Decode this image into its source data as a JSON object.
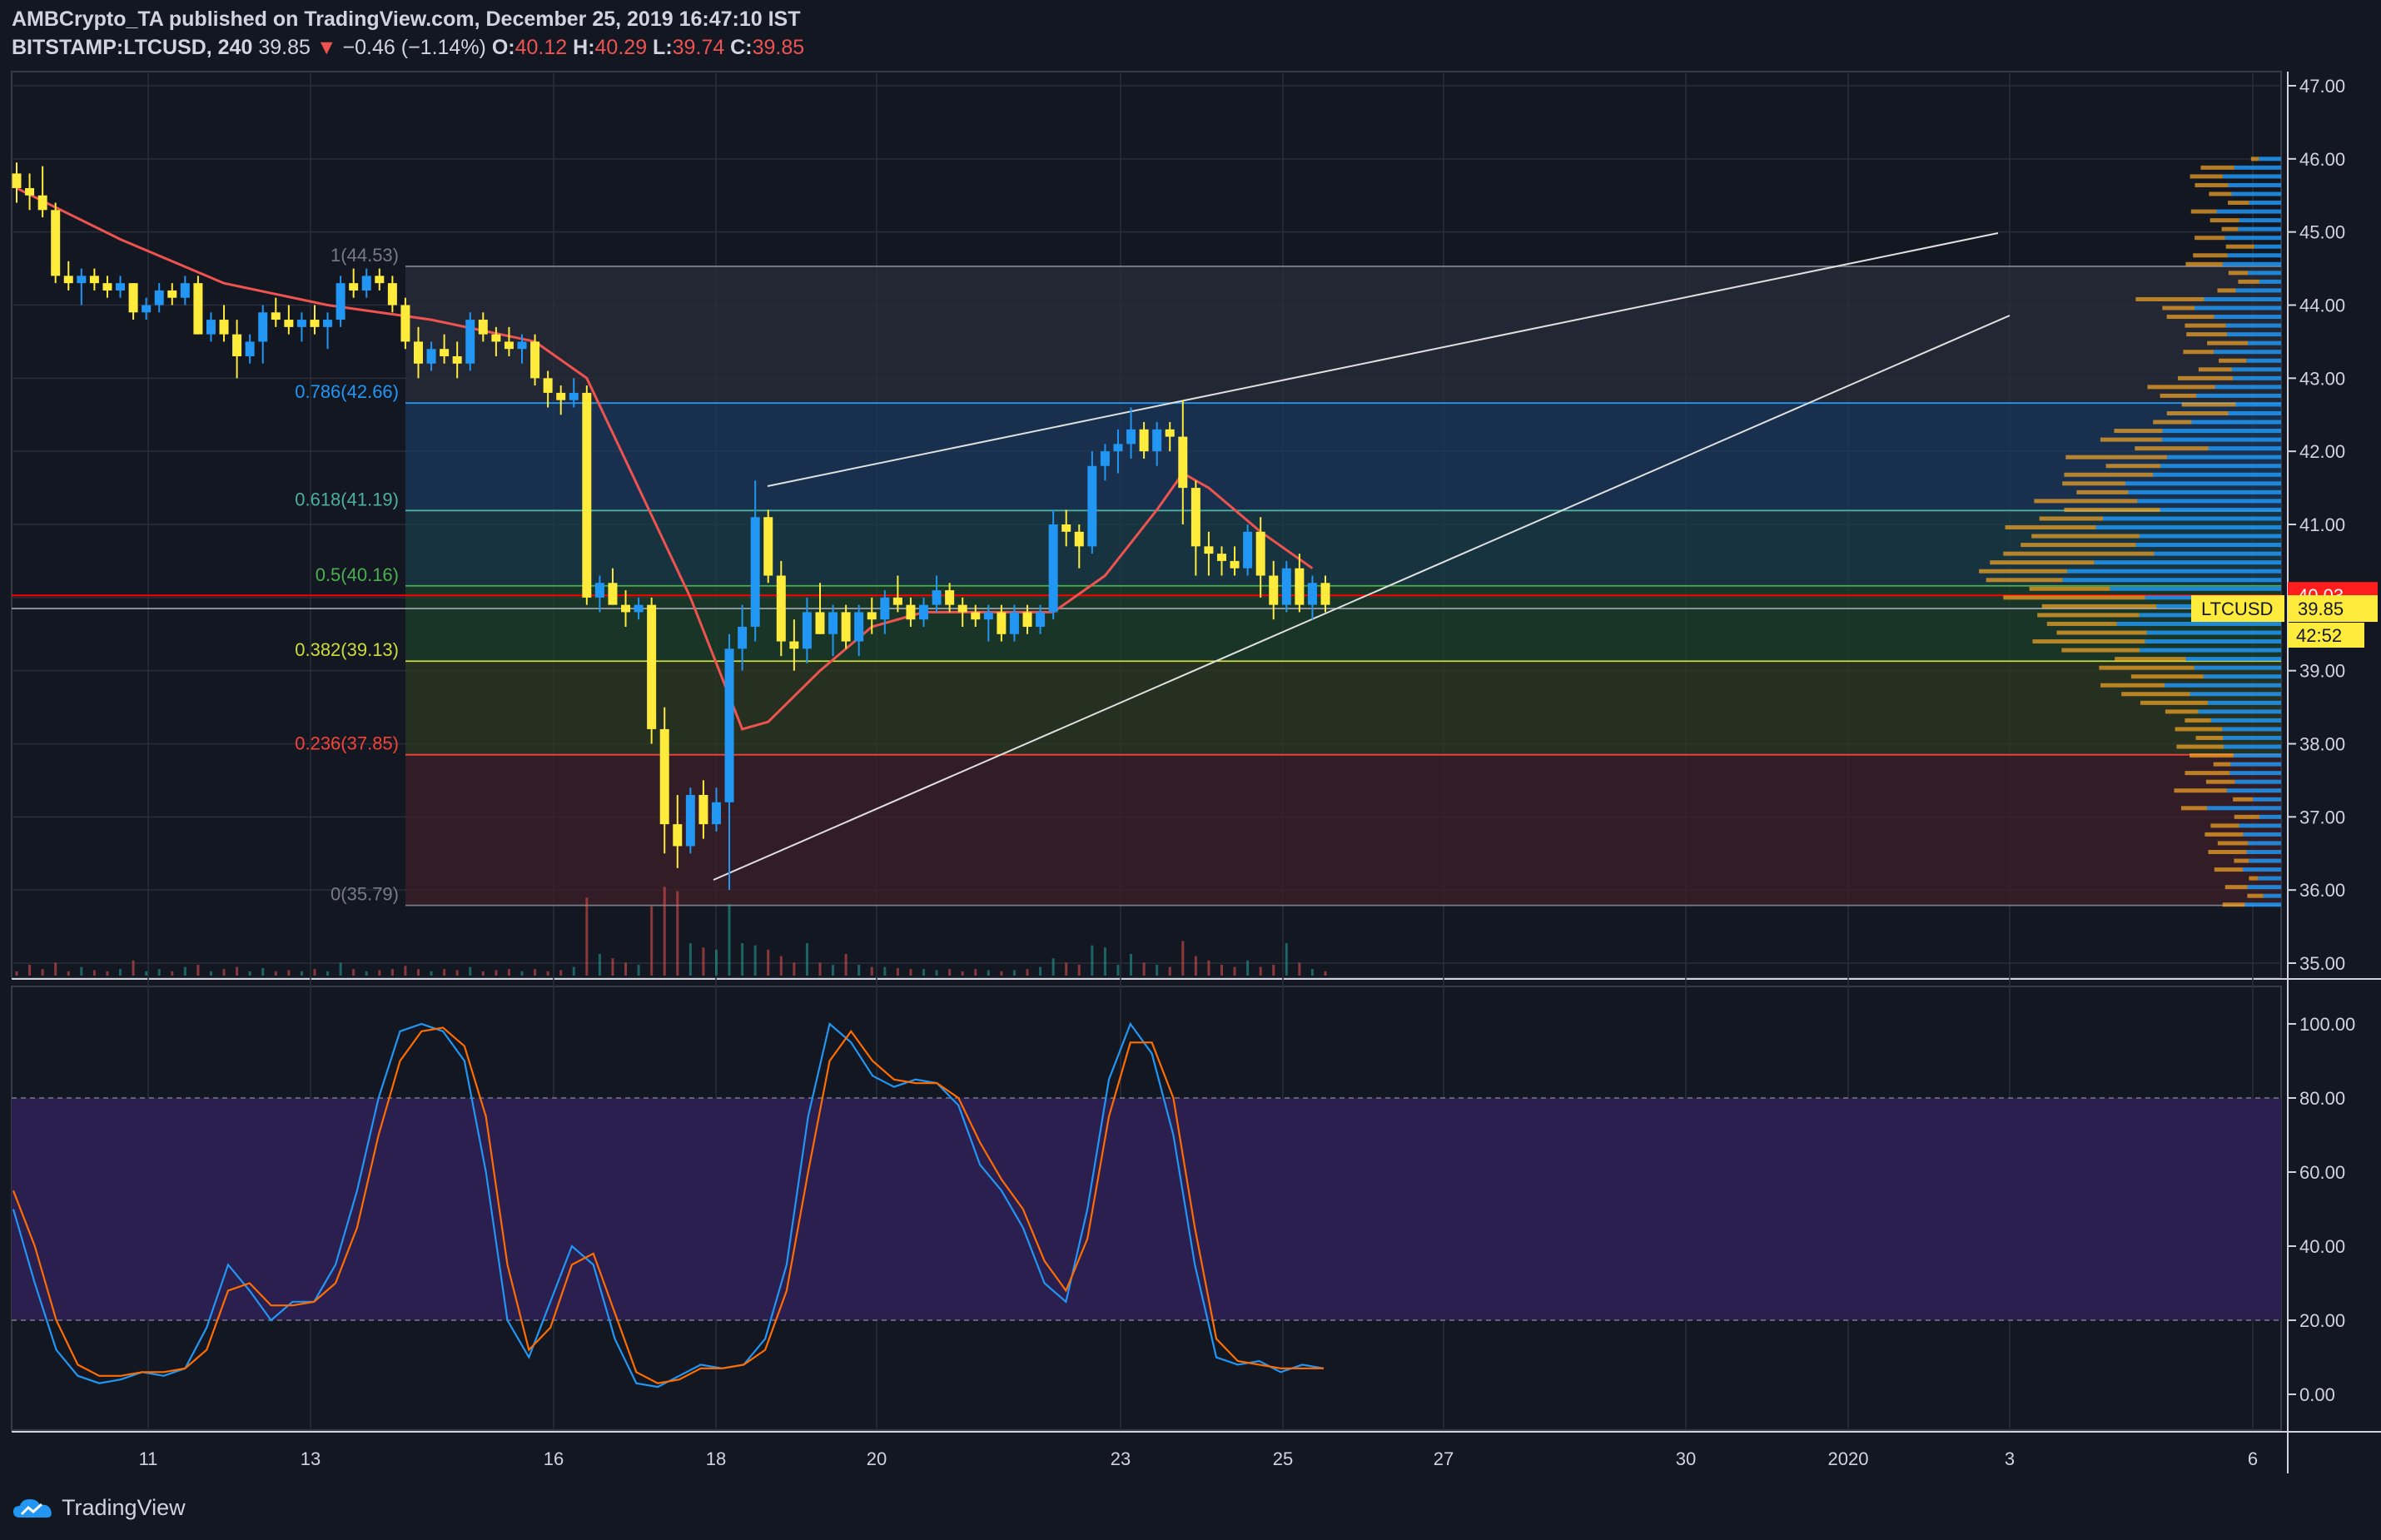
{
  "header": {
    "publisher_line": "AMBCrypto_TA published on TradingView.com, December 25, 2019 16:47:10 IST",
    "symbol": "BITSTAMP:LTCUSD, 240",
    "last": "39.85",
    "arrow": "▼",
    "change": "−0.46 (−1.14%)",
    "o_label": "O:",
    "o": "40.12",
    "h_label": "H:",
    "h": "40.29",
    "l_label": "L:",
    "l": "39.74",
    "c_label": "C:",
    "c": "39.85"
  },
  "footer": {
    "brand": "TradingView"
  },
  "colors": {
    "background": "#131722",
    "up": "#2196f3",
    "down": "#ffeb3b",
    "ma": "#ef5350",
    "grid": "#2a2e39",
    "stoch_k": "#2196f3",
    "stoch_d": "#ff6d00",
    "stoch_band": "#2a1f4f"
  },
  "chart_data": [
    {
      "type": "candlestick",
      "title": "BITSTAMP:LTCUSD, 240",
      "ylim": [
        35,
        47
      ],
      "y_ticks": [
        "47.00",
        "46.00",
        "45.00",
        "44.00",
        "43.00",
        "42.00",
        "41.00",
        "40.00",
        "39.00",
        "38.00",
        "37.00",
        "36.00",
        "35.00"
      ],
      "x_tick_labels": [
        "11",
        "13",
        "16",
        "18",
        "20",
        "23",
        "25",
        "27",
        "30",
        "2020",
        "3",
        "6"
      ],
      "price_labels": {
        "ltc_tag": "LTCUSD",
        "last": "39.85",
        "red_line": "40.03",
        "countdown": "42:52"
      },
      "fib_levels": [
        {
          "label": "1(44.53)",
          "value": 44.53
        },
        {
          "label": "0.786(42.66)",
          "value": 42.66
        },
        {
          "label": "0.618(41.19)",
          "value": 41.19
        },
        {
          "label": "0.5(40.16)",
          "value": 40.16
        },
        {
          "label": "0.382(39.13)",
          "value": 39.13
        },
        {
          "label": "0.236(37.85)",
          "value": 37.85
        },
        {
          "label": "0(35.79)",
          "value": 35.79
        }
      ],
      "candles": [
        [
          45.8,
          45.95,
          45.4,
          45.6
        ],
        [
          45.6,
          45.8,
          45.3,
          45.5
        ],
        [
          45.5,
          45.9,
          45.2,
          45.3
        ],
        [
          45.3,
          45.4,
          44.3,
          44.4
        ],
        [
          44.4,
          44.6,
          44.2,
          44.3
        ],
        [
          44.3,
          44.5,
          44.0,
          44.4
        ],
        [
          44.4,
          44.5,
          44.2,
          44.3
        ],
        [
          44.3,
          44.4,
          44.1,
          44.2
        ],
        [
          44.2,
          44.4,
          44.1,
          44.3
        ],
        [
          44.3,
          44.3,
          43.8,
          43.9
        ],
        [
          43.9,
          44.1,
          43.8,
          44.0
        ],
        [
          44.0,
          44.3,
          43.9,
          44.2
        ],
        [
          44.2,
          44.3,
          44.0,
          44.1
        ],
        [
          44.1,
          44.4,
          44.0,
          44.3
        ],
        [
          44.3,
          44.4,
          43.6,
          43.6
        ],
        [
          43.6,
          43.9,
          43.5,
          43.8
        ],
        [
          43.8,
          44.0,
          43.5,
          43.6
        ],
        [
          43.6,
          43.8,
          43.0,
          43.3
        ],
        [
          43.3,
          43.6,
          43.2,
          43.5
        ],
        [
          43.5,
          44.0,
          43.2,
          43.9
        ],
        [
          43.9,
          44.1,
          43.7,
          43.8
        ],
        [
          43.8,
          44.0,
          43.6,
          43.7
        ],
        [
          43.7,
          43.9,
          43.5,
          43.8
        ],
        [
          43.8,
          44.0,
          43.6,
          43.7
        ],
        [
          43.7,
          43.9,
          43.4,
          43.8
        ],
        [
          43.8,
          44.4,
          43.7,
          44.3
        ],
        [
          44.3,
          44.5,
          44.1,
          44.2
        ],
        [
          44.2,
          44.5,
          44.1,
          44.4
        ],
        [
          44.4,
          44.5,
          44.2,
          44.3
        ],
        [
          44.3,
          44.4,
          43.9,
          44.0
        ],
        [
          44.0,
          44.1,
          43.4,
          43.5
        ],
        [
          43.5,
          43.7,
          43.0,
          43.2
        ],
        [
          43.2,
          43.5,
          43.1,
          43.4
        ],
        [
          43.4,
          43.6,
          43.2,
          43.3
        ],
        [
          43.3,
          43.5,
          43.0,
          43.2
        ],
        [
          43.2,
          43.9,
          43.1,
          43.8
        ],
        [
          43.8,
          43.9,
          43.5,
          43.6
        ],
        [
          43.6,
          43.7,
          43.3,
          43.5
        ],
        [
          43.5,
          43.7,
          43.3,
          43.4
        ],
        [
          43.4,
          43.6,
          43.2,
          43.5
        ],
        [
          43.5,
          43.6,
          42.9,
          43.0
        ],
        [
          43.0,
          43.1,
          42.6,
          42.8
        ],
        [
          42.8,
          42.9,
          42.5,
          42.7
        ],
        [
          42.7,
          43.0,
          42.6,
          42.8
        ],
        [
          42.8,
          42.9,
          39.9,
          40.0
        ],
        [
          40.0,
          40.3,
          39.8,
          40.2
        ],
        [
          40.2,
          40.4,
          39.9,
          39.9
        ],
        [
          39.9,
          40.1,
          39.6,
          39.8
        ],
        [
          39.8,
          40.0,
          39.7,
          39.9
        ],
        [
          39.9,
          40.0,
          38.0,
          38.2
        ],
        [
          38.2,
          38.5,
          36.5,
          36.9
        ],
        [
          36.9,
          37.3,
          36.3,
          36.6
        ],
        [
          36.6,
          37.4,
          36.5,
          37.3
        ],
        [
          37.3,
          37.5,
          36.7,
          36.9
        ],
        [
          36.9,
          37.4,
          36.8,
          37.2
        ],
        [
          37.2,
          39.5,
          36.0,
          39.3
        ],
        [
          39.3,
          39.9,
          39.0,
          39.6
        ],
        [
          39.6,
          41.6,
          39.4,
          41.1
        ],
        [
          41.1,
          41.2,
          40.2,
          40.3
        ],
        [
          40.3,
          40.5,
          39.2,
          39.4
        ],
        [
          39.4,
          39.7,
          39.0,
          39.3
        ],
        [
          39.3,
          40.0,
          39.1,
          39.8
        ],
        [
          39.8,
          40.2,
          39.5,
          39.5
        ],
        [
          39.5,
          39.9,
          39.2,
          39.8
        ],
        [
          39.8,
          39.9,
          39.3,
          39.4
        ],
        [
          39.4,
          39.9,
          39.2,
          39.8
        ],
        [
          39.8,
          40.0,
          39.5,
          39.7
        ],
        [
          39.7,
          40.1,
          39.5,
          40.0
        ],
        [
          40.0,
          40.3,
          39.8,
          39.9
        ],
        [
          39.9,
          40.0,
          39.6,
          39.7
        ],
        [
          39.7,
          40.0,
          39.6,
          39.9
        ],
        [
          39.9,
          40.3,
          39.8,
          40.1
        ],
        [
          40.1,
          40.2,
          39.8,
          39.9
        ],
        [
          39.9,
          40.0,
          39.6,
          39.8
        ],
        [
          39.8,
          39.9,
          39.6,
          39.7
        ],
        [
          39.7,
          39.9,
          39.4,
          39.8
        ],
        [
          39.8,
          39.9,
          39.4,
          39.5
        ],
        [
          39.5,
          39.9,
          39.4,
          39.8
        ],
        [
          39.8,
          39.9,
          39.5,
          39.6
        ],
        [
          39.6,
          39.9,
          39.5,
          39.8
        ],
        [
          39.8,
          41.2,
          39.7,
          41.0
        ],
        [
          41.0,
          41.2,
          40.7,
          40.9
        ],
        [
          40.9,
          41.0,
          40.4,
          40.7
        ],
        [
          40.7,
          42.0,
          40.6,
          41.8
        ],
        [
          41.8,
          42.1,
          41.6,
          42.0
        ],
        [
          42.0,
          42.3,
          41.7,
          42.1
        ],
        [
          42.1,
          42.6,
          41.9,
          42.3
        ],
        [
          42.3,
          42.4,
          41.9,
          42.0
        ],
        [
          42.0,
          42.4,
          41.8,
          42.3
        ],
        [
          42.3,
          42.4,
          42.0,
          42.2
        ],
        [
          42.2,
          42.7,
          41.0,
          41.5
        ],
        [
          41.5,
          41.6,
          40.3,
          40.7
        ],
        [
          40.7,
          40.9,
          40.3,
          40.6
        ],
        [
          40.6,
          40.7,
          40.3,
          40.5
        ],
        [
          40.5,
          40.7,
          40.3,
          40.4
        ],
        [
          40.4,
          41.0,
          40.3,
          40.9
        ],
        [
          40.9,
          41.1,
          40.0,
          40.3
        ],
        [
          40.3,
          40.5,
          39.7,
          39.9
        ],
        [
          39.9,
          40.5,
          39.8,
          40.4
        ],
        [
          40.4,
          40.6,
          39.8,
          39.9
        ],
        [
          39.9,
          40.3,
          39.7,
          40.2
        ],
        [
          40.2,
          40.3,
          39.8,
          39.9
        ]
      ],
      "moving_average": [
        [
          0,
          45.6
        ],
        [
          8,
          44.9
        ],
        [
          16,
          44.3
        ],
        [
          24,
          44.0
        ],
        [
          32,
          43.8
        ],
        [
          40,
          43.5
        ],
        [
          44,
          43.0
        ],
        [
          48,
          41.5
        ],
        [
          52,
          40.0
        ],
        [
          56,
          38.2
        ],
        [
          58,
          38.3
        ],
        [
          62,
          39.0
        ],
        [
          66,
          39.6
        ],
        [
          70,
          39.8
        ],
        [
          76,
          39.8
        ],
        [
          80,
          39.8
        ],
        [
          84,
          40.3
        ],
        [
          88,
          41.2
        ],
        [
          90,
          41.7
        ],
        [
          92,
          41.5
        ],
        [
          96,
          40.9
        ],
        [
          100,
          40.4
        ]
      ],
      "volume": [
        0.2,
        0.5,
        0.3,
        0.6,
        0.2,
        0.4,
        0.25,
        0.2,
        0.3,
        0.7,
        0.2,
        0.3,
        0.2,
        0.4,
        0.5,
        0.2,
        0.3,
        0.4,
        0.2,
        0.35,
        0.2,
        0.25,
        0.2,
        0.3,
        0.2,
        0.6,
        0.3,
        0.2,
        0.25,
        0.3,
        0.45,
        0.3,
        0.2,
        0.3,
        0.25,
        0.4,
        0.2,
        0.25,
        0.3,
        0.2,
        0.3,
        0.2,
        0.25,
        0.4,
        3.6,
        1.0,
        0.8,
        0.6,
        0.5,
        3.2,
        4.1,
        3.9,
        1.5,
        1.3,
        1.2,
        3.3,
        1.5,
        1.4,
        1.2,
        0.9,
        0.6,
        1.5,
        0.6,
        0.5,
        1.0,
        0.5,
        0.4,
        0.4,
        0.35,
        0.3,
        0.3,
        0.25,
        0.3,
        0.2,
        0.3,
        0.25,
        0.2,
        0.25,
        0.3,
        0.4,
        0.8,
        0.6,
        0.5,
        1.4,
        1.3,
        0.5,
        1.0,
        0.6,
        0.5,
        0.4,
        1.6,
        0.9,
        0.7,
        0.5,
        0.4,
        0.7,
        0.4,
        0.5,
        1.5,
        0.6,
        0.3,
        0.2
      ]
    },
    {
      "type": "line",
      "title": "Stoch RSI",
      "ylim": [
        -5,
        110
      ],
      "y_ticks": [
        "100.00",
        "80.00",
        "60.00",
        "40.00",
        "20.00",
        "0.00"
      ],
      "band": [
        20,
        80
      ],
      "series": [
        {
          "values": [
            50,
            30,
            12,
            5,
            3,
            4,
            6,
            5,
            7,
            18,
            35,
            28,
            20,
            25,
            25,
            35,
            55,
            80,
            98,
            100,
            98,
            90,
            60,
            20,
            10,
            25,
            40,
            35,
            15,
            3,
            2,
            5,
            8,
            7,
            8,
            15,
            35,
            75,
            100,
            95,
            86,
            83,
            85,
            84,
            78,
            62,
            55,
            45,
            30,
            25,
            50,
            85,
            100,
            92,
            70,
            35,
            10,
            8,
            9,
            6,
            8,
            7
          ]
        },
        {
          "values": [
            55,
            40,
            20,
            8,
            5,
            5,
            6,
            6,
            7,
            12,
            28,
            30,
            24,
            24,
            25,
            30,
            45,
            70,
            90,
            98,
            99,
            94,
            75,
            35,
            12,
            18,
            35,
            38,
            22,
            6,
            3,
            4,
            7,
            7,
            8,
            12,
            28,
            60,
            90,
            98,
            90,
            85,
            84,
            84,
            80,
            68,
            58,
            50,
            36,
            28,
            42,
            75,
            95,
            95,
            80,
            45,
            15,
            9,
            8,
            7,
            7,
            7
          ]
        }
      ]
    }
  ]
}
